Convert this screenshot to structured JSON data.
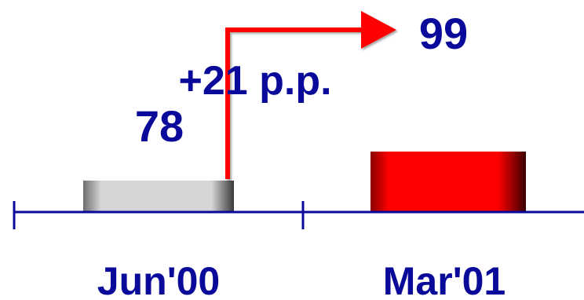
{
  "chart_data": {
    "type": "bar",
    "categories": [
      "Jun'00",
      "Mar'01"
    ],
    "values": [
      78,
      99
    ],
    "value_labels": [
      "78",
      "99"
    ],
    "annotation": "+21 p.p.",
    "grid": false,
    "legend": "none"
  },
  "colors": {
    "text": "#0a0a9a",
    "axis": "#0a0a9a",
    "bar_prior": "#d8d8d8",
    "bar_current": "#ff0000",
    "arrow": "#ff0000"
  }
}
